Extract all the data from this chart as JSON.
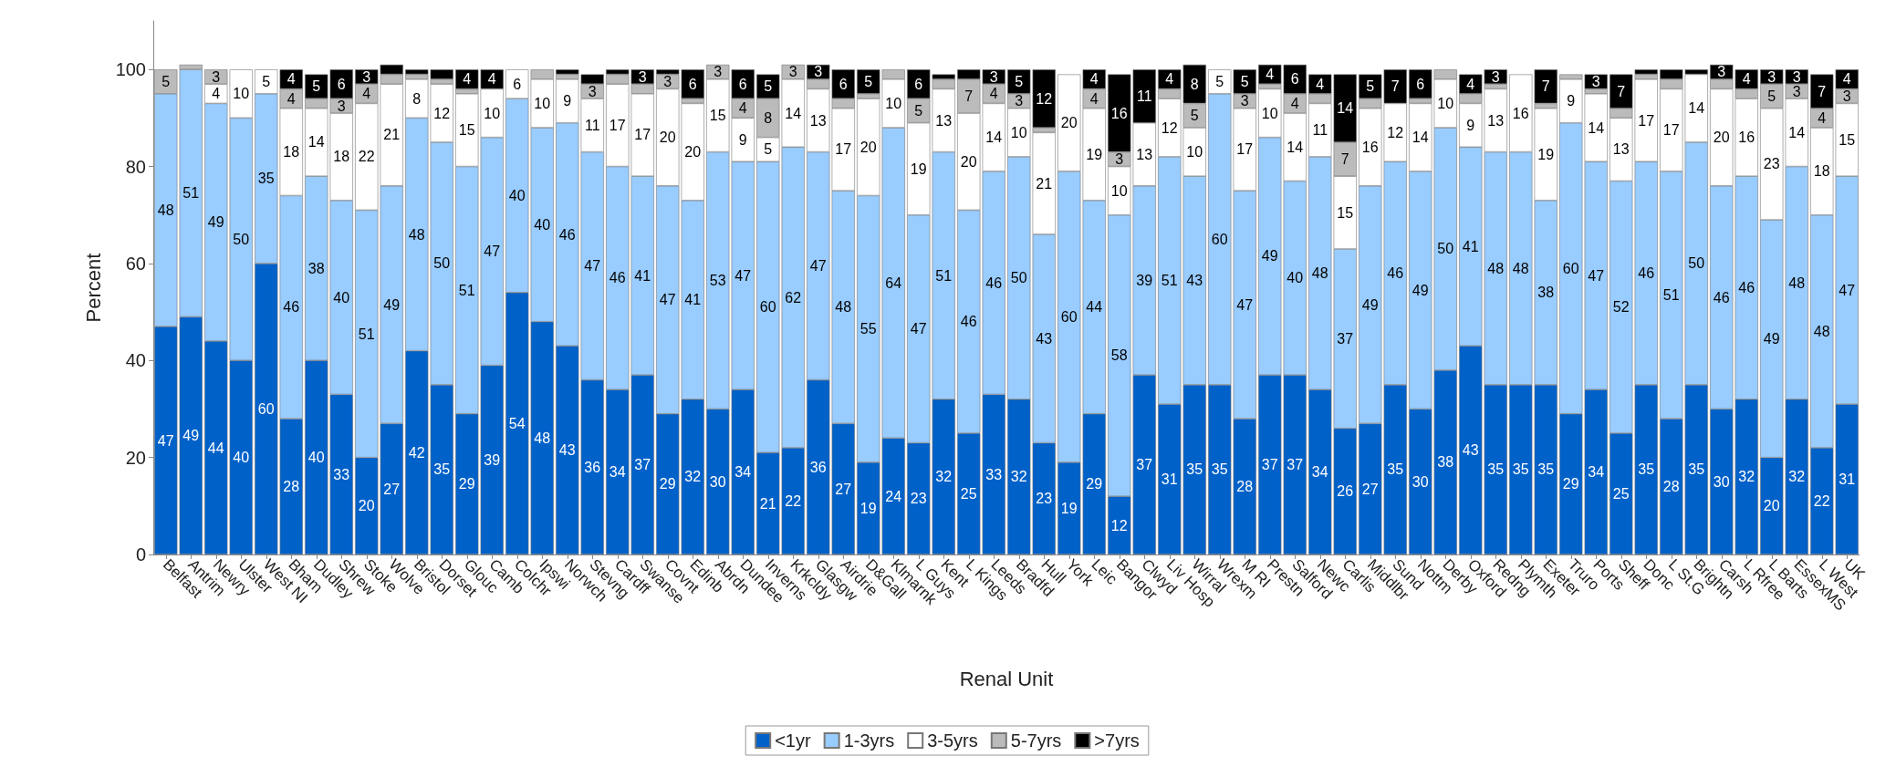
{
  "chart_data": {
    "type": "bar",
    "stacked": true,
    "xlabel": "Renal Unit",
    "ylabel": "Percent",
    "categories": [
      "Belfast",
      "Antrim",
      "Newry",
      "Ulster",
      "West NI",
      "Bham",
      "Dudley",
      "Shrew",
      "Stoke",
      "Wolve",
      "Bristol",
      "Dorset",
      "Glouc",
      "Camb",
      "Colchr",
      "Ipswi",
      "Norwch",
      "Stevng",
      "Cardff",
      "Swanse",
      "Covnt",
      "Edinb",
      "Abrdn",
      "Dundee",
      "Inverns",
      "Krkcldy",
      "Glasgw",
      "Airdrie",
      "D&Gall",
      "Klmarnk",
      "L Guys",
      "Kent",
      "L Kings",
      "Leeds",
      "Bradfd",
      "Hull",
      "York",
      "Leic",
      "Bangor",
      "Clwyd",
      "Liv Hosp",
      "Wirral",
      "Wrexm",
      "M RI",
      "Prestn",
      "Salford",
      "Newc",
      "Carlis",
      "Middlbr",
      "Sund",
      "Nottm",
      "Derby",
      "Oxford",
      "Redng",
      "Plymth",
      "Exeter",
      "Truro",
      "Ports",
      "Sheff",
      "Donc",
      "L St.G",
      "Brightn",
      "Carsh",
      "L Rfree",
      "L Barts",
      "EssexMS",
      "L West",
      "UK"
    ],
    "series": [
      {
        "name": "<1yr",
        "color": "#0061c9",
        "values": [
          47,
          49,
          44,
          40,
          60,
          28,
          40,
          33,
          20,
          27,
          42,
          35,
          29,
          39,
          54,
          48,
          43,
          36,
          34,
          37,
          29,
          32,
          30,
          34,
          21,
          22,
          36,
          27,
          19,
          24,
          23,
          32,
          25,
          33,
          32,
          23,
          19,
          29,
          12,
          37,
          31,
          35,
          35,
          28,
          37,
          37,
          34,
          26,
          27,
          35,
          30,
          38,
          43,
          35,
          35,
          35,
          29,
          34,
          25,
          35,
          28,
          35,
          30,
          32,
          20,
          32,
          22,
          31
        ],
        "value_labels": [
          "47",
          "49",
          "44",
          "40",
          "60",
          "28",
          "40",
          "33",
          "20",
          "27",
          "42",
          "35",
          "29",
          "39",
          "54",
          "48",
          "43",
          "36",
          "34",
          "37",
          "29",
          "32",
          "30",
          "34",
          "21",
          "22",
          "36",
          "27",
          "19",
          "24",
          "23",
          "32",
          "25",
          "33",
          "32",
          "23",
          "19",
          "29",
          "12",
          "37",
          "31",
          "35",
          "35",
          "28",
          "37",
          "37",
          "34",
          "26",
          "27",
          "35",
          "30",
          "38",
          "43",
          "35",
          "35",
          "35",
          "29",
          "34",
          "25",
          "35",
          "28",
          "35",
          "30",
          "32",
          "20",
          "32",
          "22",
          "31"
        ]
      },
      {
        "name": "1-3yrs",
        "color": "#99ccff",
        "values": [
          48,
          51,
          49,
          50,
          35,
          46,
          38,
          40,
          51,
          49,
          48,
          50,
          51,
          47,
          40,
          40,
          46,
          47,
          46,
          41,
          47,
          41,
          53,
          47,
          60,
          62,
          47,
          48,
          55,
          64,
          47,
          51,
          46,
          46,
          50,
          43,
          60,
          44,
          58,
          39,
          51,
          43,
          60,
          47,
          49,
          40,
          48,
          37,
          49,
          46,
          49,
          50,
          41,
          48,
          48,
          38,
          60,
          47,
          52,
          46,
          51,
          50,
          46,
          46,
          49,
          48,
          48,
          47
        ],
        "value_labels": [
          "48",
          "51",
          "49",
          "50",
          "35",
          "46",
          "38",
          "40",
          "51",
          "49",
          "48",
          "50",
          "51",
          "47",
          "40",
          "40",
          "46",
          "47",
          "46",
          "41",
          "47",
          "41",
          "53",
          "47",
          "60",
          "62",
          "47",
          "48",
          "55",
          "64",
          "47",
          "51",
          "46",
          "46",
          "50",
          "43",
          "60",
          "44",
          "58",
          "39",
          "51",
          "43",
          "60",
          "47",
          "49",
          "40",
          "48",
          "37",
          "49",
          "46",
          "49",
          "50",
          "41",
          "48",
          "48",
          "38",
          "60",
          "47",
          "52",
          "46",
          "51",
          "50",
          "46",
          "46",
          "49",
          "48",
          "48",
          "47"
        ]
      },
      {
        "name": "3-5yrs",
        "color": "#ffffff",
        "values": [
          null,
          null,
          4,
          10,
          5,
          18,
          14,
          18,
          22,
          21,
          8,
          12,
          15,
          10,
          6,
          10,
          9,
          11,
          17,
          17,
          20,
          20,
          15,
          9,
          5,
          14,
          13,
          17,
          20,
          10,
          19,
          13,
          20,
          14,
          10,
          21,
          20,
          19,
          10,
          13,
          12,
          10,
          5,
          17,
          10,
          14,
          11,
          15,
          16,
          12,
          14,
          10,
          9,
          13,
          16,
          19,
          9,
          14,
          13,
          17,
          17,
          14,
          20,
          16,
          23,
          14,
          18,
          15
        ],
        "value_labels": [
          null,
          null,
          "4",
          "10",
          "5",
          "18",
          "14",
          "18",
          "22",
          "21",
          "8",
          "12",
          "15",
          "10",
          "6",
          "10",
          "9",
          "11",
          "17",
          "17",
          "20",
          "20",
          "15",
          "9",
          "5",
          "14",
          "13",
          "17",
          "20",
          "10",
          "19",
          "13",
          "20",
          "14",
          "10",
          "21",
          "20",
          "19",
          "10",
          "13",
          "12",
          "10",
          "5",
          "17",
          "10",
          "14",
          "11",
          "15",
          "16",
          "12",
          "14",
          "10",
          "9",
          "13",
          "16",
          "19",
          "9",
          "14",
          "13",
          "17",
          "17",
          "14",
          "20",
          "16",
          "23",
          "14",
          "18",
          "15"
        ]
      },
      {
        "name": "5-7yrs",
        "color": "#bbbbbb",
        "values": [
          5,
          1,
          3,
          null,
          null,
          4,
          2,
          3,
          4,
          2,
          1,
          1,
          1,
          null,
          null,
          2,
          1,
          3,
          2,
          2,
          3,
          1,
          3,
          4,
          8,
          3,
          2,
          2,
          1,
          2,
          5,
          2,
          7,
          4,
          3,
          1,
          null,
          4,
          3,
          null,
          2,
          5,
          null,
          3,
          1,
          4,
          2,
          7,
          2,
          null,
          1,
          2,
          2,
          1,
          null,
          1,
          1,
          1,
          2,
          1,
          2,
          null,
          2,
          2,
          5,
          3,
          4,
          3
        ],
        "value_labels": [
          "5",
          null,
          "3",
          null,
          null,
          "4",
          null,
          "3",
          "4",
          null,
          null,
          null,
          null,
          null,
          null,
          null,
          null,
          "3",
          null,
          null,
          "3",
          null,
          "3",
          "4",
          "8",
          "3",
          null,
          null,
          null,
          null,
          "5",
          null,
          "7",
          "4",
          "3",
          null,
          null,
          "4",
          "3",
          null,
          null,
          "5",
          null,
          "3",
          null,
          "4",
          null,
          "7",
          null,
          null,
          null,
          null,
          null,
          null,
          null,
          null,
          null,
          null,
          null,
          null,
          null,
          null,
          null,
          null,
          "5",
          "3",
          "4",
          "3"
        ]
      },
      {
        "name": ">7yrs",
        "color": "#000000",
        "values": [
          null,
          null,
          null,
          null,
          null,
          4,
          5,
          6,
          3,
          2,
          1,
          2,
          4,
          4,
          null,
          null,
          1,
          2,
          1,
          3,
          1,
          6,
          null,
          6,
          5,
          null,
          3,
          6,
          5,
          null,
          6,
          1,
          2,
          3,
          5,
          12,
          null,
          4,
          16,
          11,
          4,
          8,
          null,
          5,
          4,
          6,
          4,
          14,
          5,
          7,
          6,
          null,
          4,
          3,
          null,
          7,
          null,
          3,
          7,
          1,
          2,
          1,
          3,
          4,
          3,
          3,
          7,
          4
        ],
        "value_labels": [
          null,
          null,
          null,
          null,
          null,
          "4",
          "5",
          "6",
          "3",
          null,
          null,
          null,
          "4",
          "4",
          null,
          null,
          null,
          null,
          null,
          "3",
          null,
          "6",
          null,
          "6",
          "5",
          null,
          "3",
          "6",
          "5",
          null,
          "6",
          null,
          null,
          "3",
          "5",
          "12",
          null,
          "4",
          "16",
          "11",
          "4",
          "8",
          null,
          "5",
          "4",
          "6",
          "4",
          "14",
          "5",
          "7",
          "6",
          null,
          "4",
          "3",
          null,
          "7",
          null,
          "3",
          "7",
          null,
          null,
          null,
          "3",
          "4",
          "3",
          "3",
          "7",
          "4"
        ]
      }
    ],
    "ylim": [
      0,
      110
    ],
    "yticks": [
      0,
      20,
      40,
      60,
      80,
      100
    ],
    "legend": "bottom",
    "grid": false
  }
}
